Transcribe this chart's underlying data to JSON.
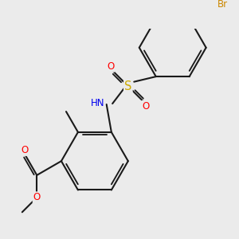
{
  "bg_color": "#ebebeb",
  "bond_color": "#1a1a1a",
  "bond_width": 1.5,
  "atom_colors": {
    "O": "#ff0000",
    "N": "#0000ee",
    "S": "#ccaa00",
    "Br": "#cc8800",
    "C": "#1a1a1a",
    "H": "#557777"
  },
  "font_size": 8.5,
  "fig_size": [
    3.0,
    3.0
  ],
  "dpi": 100
}
